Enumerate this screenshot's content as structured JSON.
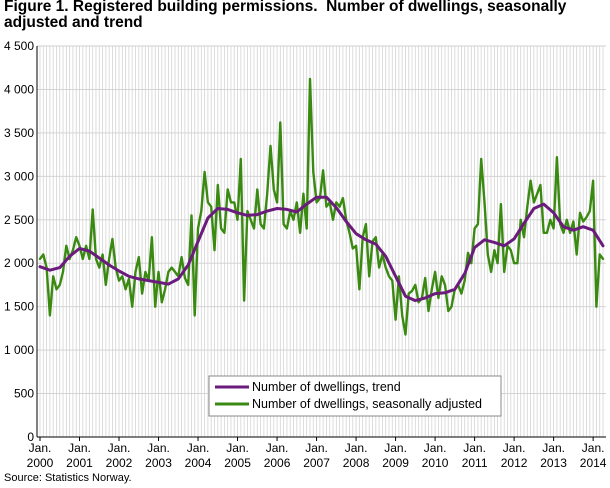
{
  "title": "Figure 1. Registered building permissions.  Number of dwellings, seasonally adjusted and trend",
  "source": "Source: Statistics Norway.",
  "chart_data": {
    "type": "line",
    "title": "Figure 1. Registered building permissions.  Number of dwellings, seasonally adjusted and trend",
    "xlabel": "",
    "ylabel": "",
    "ylim": [
      0,
      4500
    ],
    "yticks": [
      0,
      500,
      1000,
      1500,
      2000,
      2500,
      3000,
      3500,
      4000,
      4500
    ],
    "ytick_labels": [
      "0",
      "500",
      "1 000",
      "1 500",
      "2 000",
      "2 500",
      "3 000",
      "3 500",
      "4 000",
      "4 500"
    ],
    "xticks": [
      {
        "month": 0,
        "line1": "Jan.",
        "line2": "2000"
      },
      {
        "month": 12,
        "line1": "Jan.",
        "line2": "2001"
      },
      {
        "month": 24,
        "line1": "Jan.",
        "line2": "2002"
      },
      {
        "month": 36,
        "line1": "Jan.",
        "line2": "2003"
      },
      {
        "month": 48,
        "line1": "Jan.",
        "line2": "2004"
      },
      {
        "month": 60,
        "line1": "Jan.",
        "line2": "2005"
      },
      {
        "month": 72,
        "line1": "Jan.",
        "line2": "2006"
      },
      {
        "month": 84,
        "line1": "Jan.",
        "line2": "2007"
      },
      {
        "month": 96,
        "line1": "Jan.",
        "line2": "2008"
      },
      {
        "month": 108,
        "line1": "Jan.",
        "line2": "2009"
      },
      {
        "month": 120,
        "line1": "Jan.",
        "line2": "2010"
      },
      {
        "month": 132,
        "line1": "Jan.",
        "line2": "2011"
      },
      {
        "month": 144,
        "line1": "Jan.",
        "line2": "2012"
      },
      {
        "month": 156,
        "line1": "Jan.",
        "line2": "2013"
      },
      {
        "month": 168,
        "line1": "Jan.",
        "line2": "2014"
      }
    ],
    "xlim_months": [
      0,
      171
    ],
    "grid": true,
    "legend_position": "lower-center",
    "series": [
      {
        "name": "Number of dwellings, trend",
        "color": "#6a1b7c",
        "points": [
          [
            0,
            1960
          ],
          [
            3,
            1920
          ],
          [
            6,
            1950
          ],
          [
            9,
            2080
          ],
          [
            12,
            2170
          ],
          [
            15,
            2140
          ],
          [
            18,
            2060
          ],
          [
            21,
            1980
          ],
          [
            24,
            1910
          ],
          [
            27,
            1850
          ],
          [
            30,
            1820
          ],
          [
            33,
            1800
          ],
          [
            36,
            1780
          ],
          [
            39,
            1760
          ],
          [
            42,
            1820
          ],
          [
            45,
            1980
          ],
          [
            48,
            2250
          ],
          [
            51,
            2520
          ],
          [
            54,
            2630
          ],
          [
            57,
            2620
          ],
          [
            60,
            2580
          ],
          [
            63,
            2550
          ],
          [
            66,
            2560
          ],
          [
            69,
            2600
          ],
          [
            72,
            2630
          ],
          [
            75,
            2620
          ],
          [
            78,
            2590
          ],
          [
            81,
            2680
          ],
          [
            84,
            2760
          ],
          [
            87,
            2760
          ],
          [
            90,
            2640
          ],
          [
            93,
            2480
          ],
          [
            96,
            2340
          ],
          [
            99,
            2270
          ],
          [
            102,
            2220
          ],
          [
            105,
            2080
          ],
          [
            108,
            1850
          ],
          [
            111,
            1620
          ],
          [
            114,
            1570
          ],
          [
            117,
            1600
          ],
          [
            120,
            1650
          ],
          [
            123,
            1660
          ],
          [
            126,
            1700
          ],
          [
            129,
            1880
          ],
          [
            132,
            2180
          ],
          [
            135,
            2270
          ],
          [
            138,
            2240
          ],
          [
            141,
            2200
          ],
          [
            144,
            2280
          ],
          [
            147,
            2460
          ],
          [
            150,
            2630
          ],
          [
            153,
            2680
          ],
          [
            156,
            2580
          ],
          [
            159,
            2420
          ],
          [
            162,
            2380
          ],
          [
            165,
            2420
          ],
          [
            168,
            2380
          ],
          [
            171,
            2200
          ]
        ]
      },
      {
        "name": "Number of dwellings, seasonally adjusted",
        "color": "#3a8a12",
        "points": [
          [
            0,
            2050
          ],
          [
            1,
            2100
          ],
          [
            2,
            1950
          ],
          [
            3,
            1400
          ],
          [
            4,
            1850
          ],
          [
            5,
            1700
          ],
          [
            6,
            1750
          ],
          [
            7,
            1900
          ],
          [
            8,
            2200
          ],
          [
            9,
            2050
          ],
          [
            10,
            2150
          ],
          [
            11,
            2300
          ],
          [
            12,
            2200
          ],
          [
            13,
            2050
          ],
          [
            14,
            2200
          ],
          [
            15,
            2050
          ],
          [
            16,
            2620
          ],
          [
            17,
            2050
          ],
          [
            18,
            1950
          ],
          [
            19,
            2100
          ],
          [
            20,
            1750
          ],
          [
            21,
            2050
          ],
          [
            22,
            2280
          ],
          [
            23,
            1950
          ],
          [
            24,
            1800
          ],
          [
            25,
            1850
          ],
          [
            26,
            1700
          ],
          [
            27,
            1820
          ],
          [
            28,
            1500
          ],
          [
            29,
            1900
          ],
          [
            30,
            2070
          ],
          [
            31,
            1650
          ],
          [
            32,
            1900
          ],
          [
            33,
            1800
          ],
          [
            34,
            2300
          ],
          [
            35,
            1500
          ],
          [
            36,
            1900
          ],
          [
            37,
            1550
          ],
          [
            38,
            1700
          ],
          [
            39,
            1900
          ],
          [
            40,
            1950
          ],
          [
            41,
            1900
          ],
          [
            42,
            1850
          ],
          [
            43,
            2070
          ],
          [
            44,
            1830
          ],
          [
            45,
            1750
          ],
          [
            46,
            2550
          ],
          [
            47,
            1400
          ],
          [
            48,
            2400
          ],
          [
            49,
            2600
          ],
          [
            50,
            3050
          ],
          [
            51,
            2700
          ],
          [
            52,
            2650
          ],
          [
            53,
            2150
          ],
          [
            54,
            2900
          ],
          [
            55,
            2400
          ],
          [
            56,
            2350
          ],
          [
            57,
            2850
          ],
          [
            58,
            2700
          ],
          [
            59,
            2700
          ],
          [
            60,
            2500
          ],
          [
            61,
            3200
          ],
          [
            62,
            1570
          ],
          [
            63,
            2600
          ],
          [
            64,
            2500
          ],
          [
            65,
            2400
          ],
          [
            66,
            2850
          ],
          [
            67,
            2450
          ],
          [
            68,
            2400
          ],
          [
            69,
            2800
          ],
          [
            70,
            3350
          ],
          [
            71,
            2850
          ],
          [
            72,
            2700
          ],
          [
            73,
            3620
          ],
          [
            74,
            2450
          ],
          [
            75,
            2400
          ],
          [
            76,
            2600
          ],
          [
            77,
            2500
          ],
          [
            78,
            2700
          ],
          [
            79,
            2350
          ],
          [
            80,
            2800
          ],
          [
            81,
            2400
          ],
          [
            82,
            4120
          ],
          [
            83,
            3050
          ],
          [
            84,
            2700
          ],
          [
            85,
            2750
          ],
          [
            86,
            3070
          ],
          [
            87,
            2650
          ],
          [
            88,
            2700
          ],
          [
            89,
            2500
          ],
          [
            90,
            2700
          ],
          [
            91,
            2650
          ],
          [
            92,
            2750
          ],
          [
            93,
            2500
          ],
          [
            94,
            2350
          ],
          [
            95,
            2170
          ],
          [
            96,
            2200
          ],
          [
            97,
            1700
          ],
          [
            98,
            2300
          ],
          [
            99,
            2450
          ],
          [
            100,
            1850
          ],
          [
            101,
            2250
          ],
          [
            102,
            2300
          ],
          [
            103,
            1950
          ],
          [
            104,
            2100
          ],
          [
            105,
            1950
          ],
          [
            106,
            1850
          ],
          [
            107,
            1800
          ],
          [
            108,
            1350
          ],
          [
            109,
            1850
          ],
          [
            110,
            1400
          ],
          [
            111,
            1180
          ],
          [
            112,
            1650
          ],
          [
            113,
            1680
          ],
          [
            114,
            1750
          ],
          [
            115,
            1550
          ],
          [
            116,
            1600
          ],
          [
            117,
            1830
          ],
          [
            118,
            1450
          ],
          [
            119,
            1700
          ],
          [
            120,
            1900
          ],
          [
            121,
            1600
          ],
          [
            122,
            1850
          ],
          [
            123,
            1750
          ],
          [
            124,
            1450
          ],
          [
            125,
            1500
          ],
          [
            126,
            1700
          ],
          [
            127,
            1750
          ],
          [
            128,
            1650
          ],
          [
            129,
            1800
          ],
          [
            130,
            2120
          ],
          [
            131,
            2000
          ],
          [
            132,
            2400
          ],
          [
            133,
            2450
          ],
          [
            134,
            3200
          ],
          [
            135,
            2700
          ],
          [
            136,
            2100
          ],
          [
            137,
            1900
          ],
          [
            138,
            2150
          ],
          [
            139,
            2000
          ],
          [
            140,
            2680
          ],
          [
            141,
            1900
          ],
          [
            142,
            2200
          ],
          [
            143,
            2150
          ],
          [
            144,
            2000
          ],
          [
            145,
            2000
          ],
          [
            146,
            2500
          ],
          [
            147,
            2300
          ],
          [
            148,
            2650
          ],
          [
            149,
            2950
          ],
          [
            150,
            2700
          ],
          [
            151,
            2800
          ],
          [
            152,
            2900
          ],
          [
            153,
            2350
          ],
          [
            154,
            2350
          ],
          [
            155,
            2500
          ],
          [
            156,
            2400
          ],
          [
            157,
            3220
          ],
          [
            158,
            2450
          ],
          [
            159,
            2350
          ],
          [
            160,
            2500
          ],
          [
            161,
            2350
          ],
          [
            162,
            2480
          ],
          [
            163,
            2100
          ],
          [
            164,
            2580
          ],
          [
            165,
            2480
          ],
          [
            166,
            2530
          ],
          [
            167,
            2600
          ],
          [
            168,
            2950
          ],
          [
            169,
            1500
          ],
          [
            170,
            2100
          ],
          [
            171,
            2050
          ]
        ]
      }
    ]
  }
}
